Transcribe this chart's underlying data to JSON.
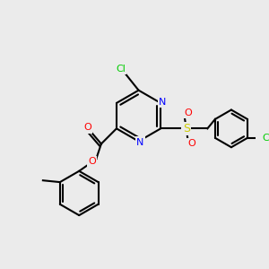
{
  "bg_color": "#ebebeb",
  "bond_color": "#000000",
  "bond_width": 1.5,
  "atom_colors": {
    "Cl": "#00cc00",
    "N": "#0000ff",
    "O": "#ff0000",
    "S": "#cccc00",
    "C": "#000000"
  }
}
